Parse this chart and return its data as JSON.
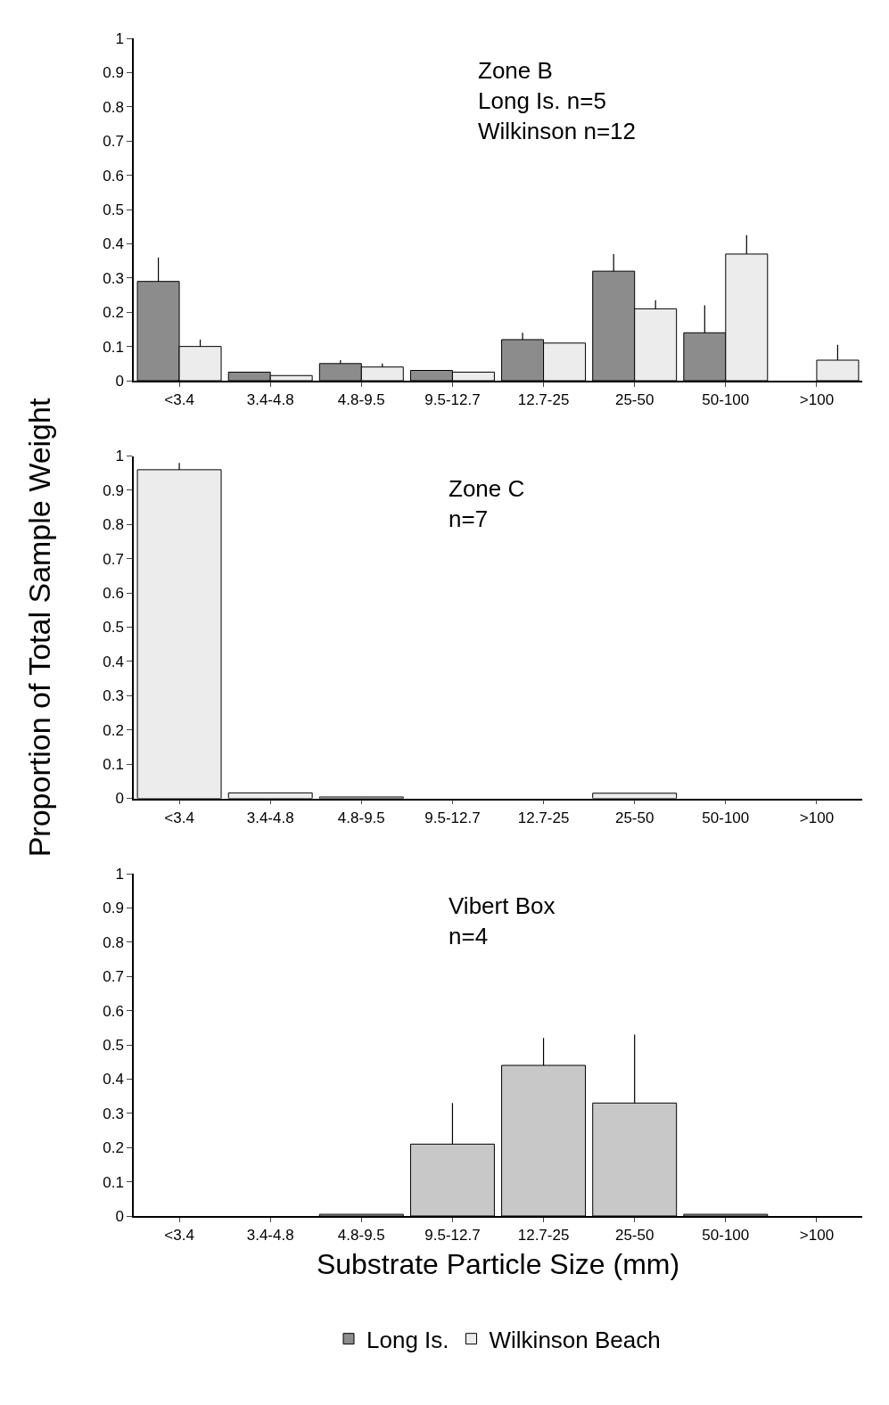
{
  "chart_data": [
    {
      "type": "bar",
      "title": "Zone B",
      "annotations": [
        "Long Is. n=5",
        "Wilkinson n=12"
      ],
      "categories": [
        "<3.4",
        "3.4-4.8",
        "4.8-9.5",
        "9.5-12.7",
        "12.7-25",
        "25-50",
        "50-100",
        ">100"
      ],
      "ylim": [
        0,
        1
      ],
      "yticks": [
        0,
        0.1,
        0.2,
        0.3,
        0.4,
        0.5,
        0.6,
        0.7,
        0.8,
        0.9,
        1
      ],
      "legend": "bottom",
      "grid": false,
      "series": [
        {
          "name": "Long Is.",
          "color": "#8c8c8c",
          "values": [
            0.29,
            0.025,
            0.05,
            0.03,
            0.12,
            0.32,
            0.14,
            null
          ],
          "errors": [
            [
              0.29,
              0.36
            ],
            null,
            [
              0.05,
              0.06
            ],
            null,
            [
              0.12,
              0.14
            ],
            [
              0.32,
              0.37
            ],
            [
              0.14,
              0.22
            ],
            null
          ]
        },
        {
          "name": "Wilkinson Beach",
          "color": "#ececec",
          "values": [
            0.1,
            0.015,
            0.04,
            0.025,
            0.11,
            0.21,
            0.37,
            0.06
          ],
          "errors": [
            [
              0.1,
              0.12
            ],
            null,
            [
              0.04,
              0.05
            ],
            null,
            null,
            [
              0.21,
              0.235
            ],
            [
              0.37,
              0.425
            ],
            [
              0.06,
              0.105
            ]
          ]
        }
      ]
    },
    {
      "type": "bar",
      "title": "Zone C",
      "annotations": [
        "n=7"
      ],
      "ylabel": "Proportion of Total Sample Weight",
      "categories": [
        "<3.4",
        "3.4-4.8",
        "4.8-9.5",
        "9.5-12.7",
        "12.7-25",
        "25-50",
        "50-100",
        ">100"
      ],
      "ylim": [
        0,
        1
      ],
      "yticks": [
        0,
        0.1,
        0.2,
        0.3,
        0.4,
        0.5,
        0.6,
        0.7,
        0.8,
        0.9,
        1
      ],
      "grid": false,
      "series": [
        {
          "color": "#ececec",
          "values": [
            0.96,
            0.016,
            0.004,
            null,
            null,
            0.015,
            null,
            null
          ],
          "errors": [
            [
              0.96,
              0.98
            ],
            null,
            null,
            null,
            null,
            null,
            null,
            null
          ]
        }
      ]
    },
    {
      "type": "bar",
      "title": "Vibert Box",
      "annotations": [
        "n=4"
      ],
      "xlabel": "Substrate Particle Size (mm)",
      "categories": [
        "<3.4",
        "3.4-4.8",
        "4.8-9.5",
        "9.5-12.7",
        "12.7-25",
        "25-50",
        "50-100",
        ">100"
      ],
      "ylim": [
        0,
        1
      ],
      "yticks": [
        0,
        0.1,
        0.2,
        0.3,
        0.4,
        0.5,
        0.6,
        0.7,
        0.8,
        0.9,
        1
      ],
      "grid": false,
      "series": [
        {
          "color": "#c8c8c8",
          "values": [
            null,
            null,
            0.005,
            0.21,
            0.44,
            0.33,
            0.005,
            null
          ],
          "errors": [
            null,
            null,
            null,
            [
              0.21,
              0.33
            ],
            [
              0.44,
              0.52
            ],
            [
              0.33,
              0.53
            ],
            null,
            null
          ]
        }
      ]
    }
  ]
}
